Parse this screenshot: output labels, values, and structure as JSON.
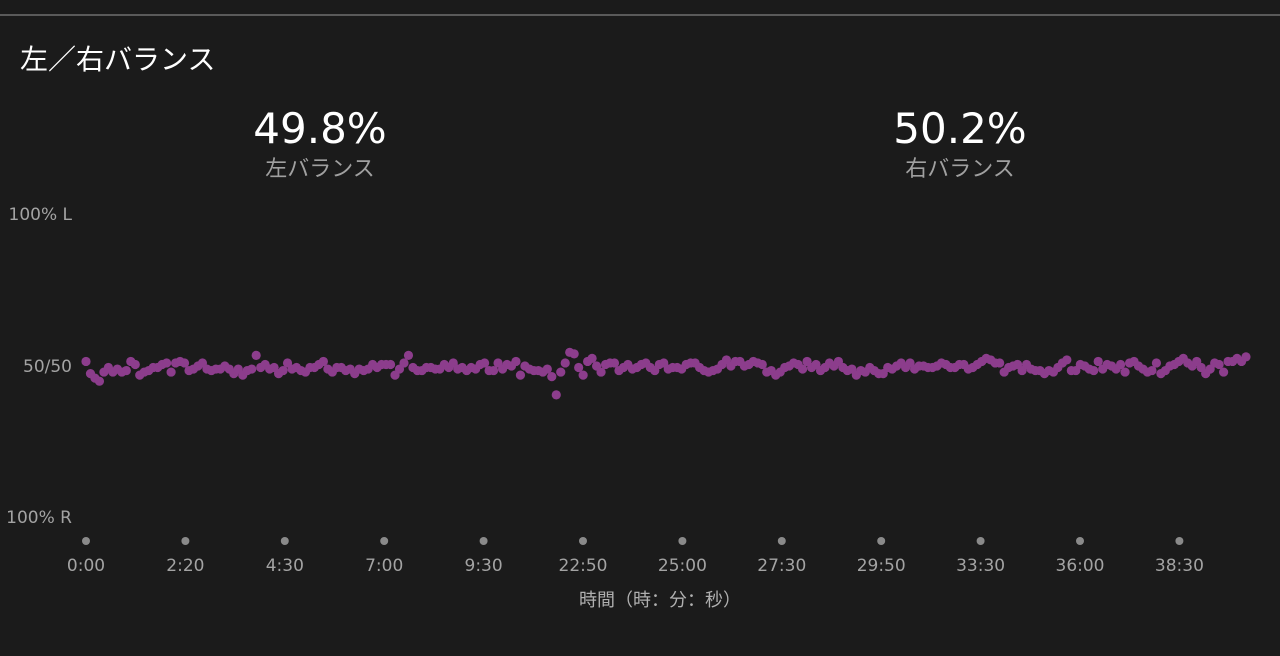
{
  "panel": {
    "title": "左／右バランス"
  },
  "stats": {
    "left": {
      "value": "49.8%",
      "label": "左バランス"
    },
    "right": {
      "value": "50.2%",
      "label": "右バランス"
    }
  },
  "colors": {
    "background": "#1b1b1b",
    "point": "#8c3d8c",
    "tick_dot": "#8a8a8a",
    "text_muted": "#a3a3a3"
  },
  "chart_data": {
    "type": "scatter",
    "title": "",
    "xlabel": "時間（時：分：秒）",
    "ylabel": "",
    "y_tick_labels": [
      "100% L",
      "50/50",
      "100% R"
    ],
    "x_tick_labels": [
      "0:00",
      "2:20",
      "4:30",
      "7:00",
      "9:30",
      "22:50",
      "25:00",
      "27:30",
      "29:50",
      "33:30",
      "36:00",
      "38:30"
    ],
    "ylim": [
      -100,
      100
    ],
    "y_meaning": "positive = left, negative = right, 0 = 50/50",
    "grid": false,
    "legend": "none",
    "series": [
      {
        "values": [
          3,
          -5,
          -8,
          -10,
          -4,
          -1,
          -4,
          -2,
          -4,
          -3,
          3,
          1,
          -6,
          -4,
          -3,
          -1,
          -1,
          1,
          2,
          -4,
          2,
          3,
          2,
          -3,
          -2,
          0,
          2,
          -2,
          -3,
          -2,
          -2,
          0,
          -2,
          -5,
          -2,
          -6,
          -3,
          -2,
          7,
          -1,
          1,
          -2,
          -1,
          -5,
          -3,
          2,
          -2,
          -1,
          -3,
          -4,
          -1,
          -1,
          1,
          3,
          -2,
          -4,
          -1,
          -1,
          -3,
          -2,
          -5,
          -2,
          -3,
          -2,
          1,
          -1,
          1,
          1,
          1,
          -6,
          -2,
          2,
          7,
          -1,
          -3,
          -3,
          -1,
          -1,
          -2,
          -2,
          1,
          -1,
          2,
          -2,
          -1,
          -3,
          -1,
          -2,
          1,
          2,
          -3,
          -3,
          2,
          -2,
          1,
          0,
          3,
          -6,
          0,
          -2,
          -3,
          -3,
          -4,
          -2,
          -7,
          -19,
          -4,
          2,
          9,
          8,
          -1,
          -6,
          3,
          5,
          0,
          -4,
          1,
          2,
          2,
          -3,
          -1,
          1,
          -2,
          -1,
          1,
          2,
          -1,
          -3,
          1,
          2,
          -2,
          -1,
          -1,
          -2,
          1,
          2,
          2,
          -1,
          -3,
          -4,
          -3,
          -2,
          1,
          4,
          0,
          3,
          3,
          0,
          1,
          3,
          2,
          1,
          -4,
          -3,
          -6,
          -4,
          -1,
          0,
          2,
          1,
          -2,
          3,
          -1,
          1,
          -3,
          -1,
          2,
          0,
          3,
          -1,
          -3,
          -2,
          -6,
          -3,
          -4,
          -1,
          -3,
          -5,
          -5,
          -1,
          -2,
          0,
          2,
          -1,
          2,
          -2,
          0,
          0,
          -1,
          -1,
          0,
          2,
          1,
          -1,
          -1,
          1,
          1,
          -2,
          -1,
          1,
          3,
          5,
          4,
          2,
          2,
          -4,
          -1,
          0,
          1,
          -3,
          1,
          -2,
          -3,
          -3,
          -5,
          -3,
          -4,
          -1,
          2,
          4,
          -3,
          -3,
          1,
          0,
          -2,
          -3,
          3,
          -2,
          1,
          0,
          -2,
          1,
          -4,
          2,
          3,
          0,
          -2,
          -4,
          -3,
          2,
          -5,
          -3,
          0,
          1,
          3,
          5,
          2,
          0,
          3,
          -1,
          -5,
          -2,
          2,
          1,
          -4,
          3,
          3,
          5,
          3,
          6
        ]
      }
    ]
  }
}
